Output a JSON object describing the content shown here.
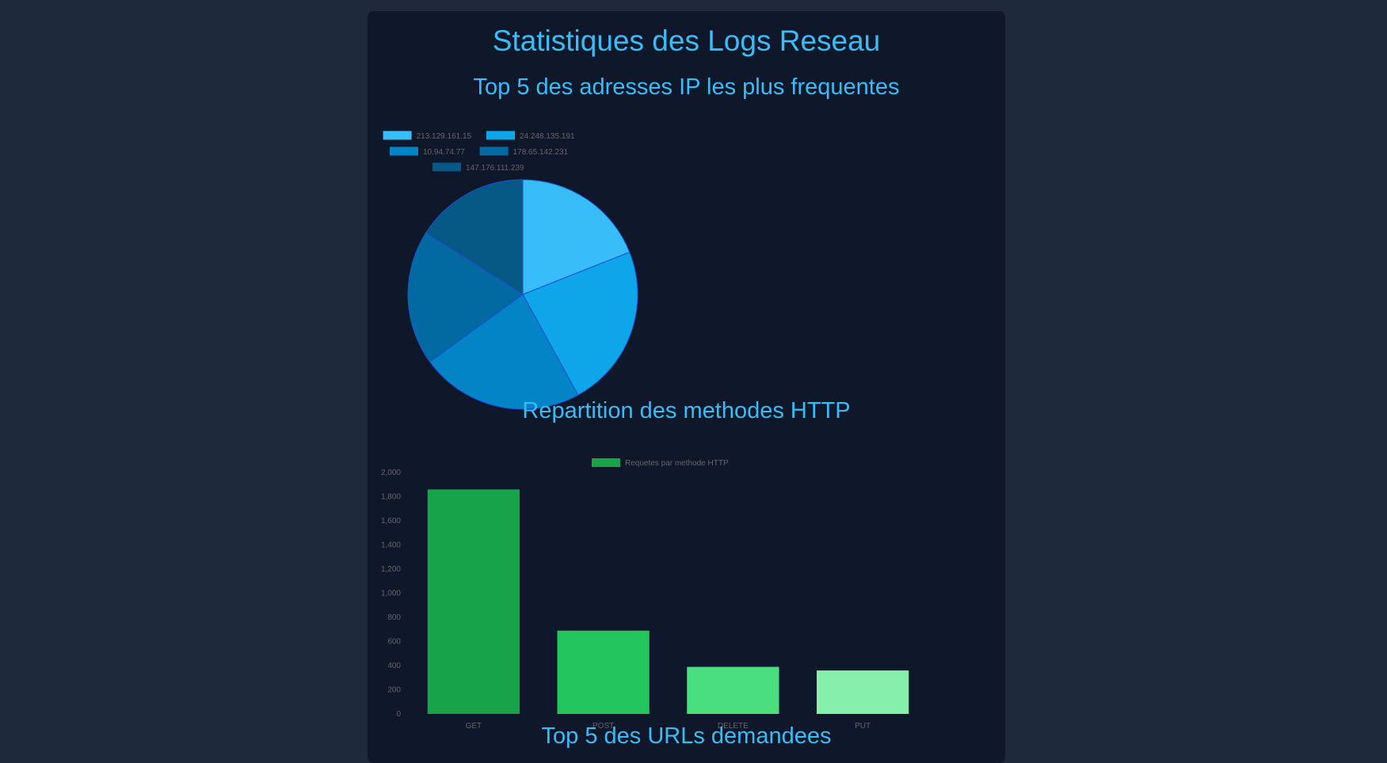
{
  "page": {
    "title": "Statistiques des Logs Reseau"
  },
  "sections": {
    "ip": {
      "heading": "Top 5 des adresses IP les plus frequentes"
    },
    "methods": {
      "heading": "Repartition des methodes HTTP"
    },
    "urls": {
      "heading": "Top 5 des URLs demandees"
    }
  },
  "colors": {
    "page_bg": "#1e293b",
    "card_bg": "#0f172a",
    "heading": "#38bdf8"
  },
  "chart_data": [
    {
      "type": "pie",
      "title": "",
      "legend_position": "top",
      "labels": [
        "213.129.161.15",
        "24.248.135.191",
        "10.94.74.77",
        "178.65.142.231",
        "147.176.111.239"
      ],
      "values": [
        19,
        23,
        23,
        19,
        16
      ],
      "colors": [
        "#38bdf8",
        "#0ea5e9",
        "#0284c7",
        "#0369a1",
        "#075985"
      ]
    },
    {
      "type": "bar",
      "title": "",
      "legend_position": "top",
      "categories": [
        "GET",
        "POST",
        "DELETE",
        "PUT"
      ],
      "series": [
        {
          "name": "Requetes par methode HTTP",
          "values": [
            1860,
            690,
            390,
            360
          ],
          "colors": [
            "#16a34a",
            "#22c55e",
            "#4ade80",
            "#86efac"
          ],
          "legend_color": "#16a34a"
        }
      ],
      "ylim": [
        0,
        2000
      ],
      "yticks": [
        "0",
        "200",
        "400",
        "600",
        "800",
        "1,000",
        "1,200",
        "1,400",
        "1,600",
        "1,800",
        "2,000"
      ],
      "grid": false
    }
  ]
}
